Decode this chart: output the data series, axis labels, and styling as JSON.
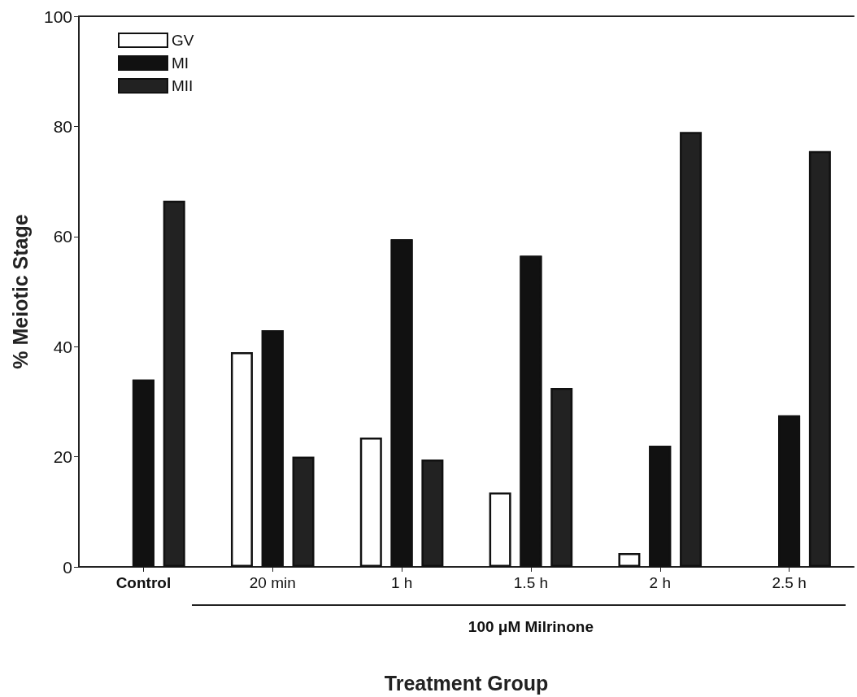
{
  "chart_data": {
    "type": "bar",
    "xlabel": "Treatment Group",
    "ylabel": "% Meiotic Stage",
    "categories": [
      "Control",
      "20 min",
      "1 h",
      "1.5 h",
      "2 h",
      "2.5 h"
    ],
    "series": [
      {
        "name": "GV",
        "color": "#ffffff",
        "values": [
          0,
          39,
          23.5,
          13.5,
          2.5,
          0
        ]
      },
      {
        "name": "MI",
        "color": "#111111",
        "values": [
          34,
          43,
          59.5,
          56.5,
          22,
          27.5
        ]
      },
      {
        "name": "MII",
        "color": "#222222",
        "values": [
          66.5,
          20,
          19.5,
          32.5,
          79,
          75.5
        ]
      }
    ],
    "ylim": [
      0,
      100
    ],
    "yticks": [
      0,
      20,
      40,
      60,
      80,
      100
    ],
    "grid": false,
    "legend": "top left",
    "annotations": [
      "100 μM Milrinone"
    ]
  }
}
